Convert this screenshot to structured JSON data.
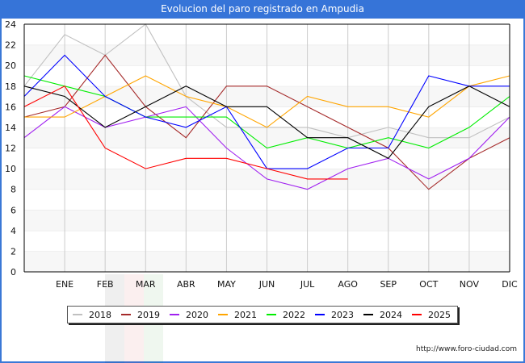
{
  "header": {
    "title": "Evolucion del paro registrado en Ampudia"
  },
  "footer": {
    "url": "http://www.foro-ciudad.com"
  },
  "chart_data": {
    "type": "line",
    "title": "Evolucion del paro registrado en Ampudia",
    "xlabel": "",
    "ylabel": "",
    "categories": [
      "",
      "ENE",
      "FEB",
      "MAR",
      "ABR",
      "MAY",
      "JUN",
      "JUL",
      "AGO",
      "SEP",
      "OCT",
      "NOV",
      "DIC"
    ],
    "ylim": [
      0,
      24
    ],
    "yticks": [
      0,
      2,
      4,
      6,
      8,
      10,
      12,
      14,
      16,
      18,
      20,
      22,
      24
    ],
    "grid": true,
    "legend_position": "bottom",
    "series": [
      {
        "name": "2018",
        "color": "#c0c0c0",
        "values": [
          18,
          23,
          21,
          24,
          17,
          14,
          14,
          14,
          13,
          14,
          13,
          13,
          15
        ]
      },
      {
        "name": "2019",
        "color": "#a52a2a",
        "values": [
          15,
          16,
          21,
          16,
          13,
          18,
          18,
          16,
          14,
          12,
          8,
          11,
          13
        ]
      },
      {
        "name": "2020",
        "color": "#a020f0",
        "values": [
          13,
          16,
          14,
          15,
          16,
          12,
          9,
          8,
          10,
          11,
          9,
          11,
          15
        ]
      },
      {
        "name": "2021",
        "color": "#ffa500",
        "values": [
          15,
          15,
          17,
          19,
          17,
          16,
          14,
          17,
          16,
          16,
          15,
          18,
          19
        ]
      },
      {
        "name": "2022",
        "color": "#00ee00",
        "values": [
          19,
          18,
          17,
          15,
          15,
          15,
          12,
          13,
          12,
          13,
          12,
          14,
          17
        ]
      },
      {
        "name": "2023",
        "color": "#0000ff",
        "values": [
          17,
          21,
          17,
          15,
          14,
          16,
          10,
          10,
          12,
          12,
          19,
          18,
          18
        ]
      },
      {
        "name": "2024",
        "color": "#000000",
        "values": [
          18,
          17,
          14,
          16,
          18,
          16,
          16,
          13,
          13,
          11,
          16,
          18,
          16
        ]
      },
      {
        "name": "2025",
        "color": "#ff0000",
        "values": [
          16,
          18,
          12,
          10,
          11,
          11,
          10,
          9,
          9,
          null,
          null,
          null,
          null
        ]
      }
    ]
  }
}
